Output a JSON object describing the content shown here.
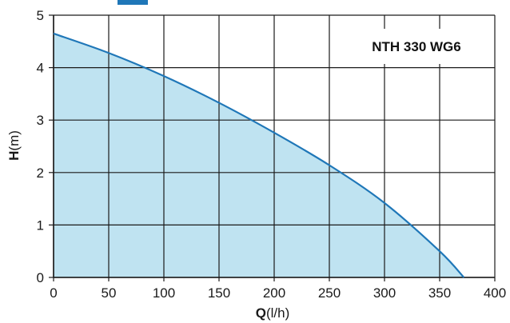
{
  "colors": {
    "curve": "#1f77b8",
    "fill": "#bfe3f1",
    "grid": "#1a1a1a",
    "accent": "#1f77b8"
  },
  "chart_data": {
    "type": "area",
    "title": "NTH 330 WG6",
    "xlabel_bold": "Q",
    "xlabel_unit": "(l/h)",
    "ylabel_bold": "H",
    "ylabel_unit": "(m)",
    "xlim": [
      0,
      400
    ],
    "ylim": [
      0,
      5
    ],
    "xticks": [
      0,
      50,
      100,
      150,
      200,
      250,
      300,
      350,
      400
    ],
    "yticks": [
      0,
      1,
      2,
      3,
      4,
      5
    ],
    "grid": true,
    "series": [
      {
        "x": [
          0,
          50,
          100,
          150,
          200,
          250,
          300,
          350,
          372
        ],
        "y": [
          4.65,
          4.28,
          3.84,
          3.33,
          2.76,
          2.14,
          1.42,
          0.5,
          0
        ]
      }
    ]
  }
}
